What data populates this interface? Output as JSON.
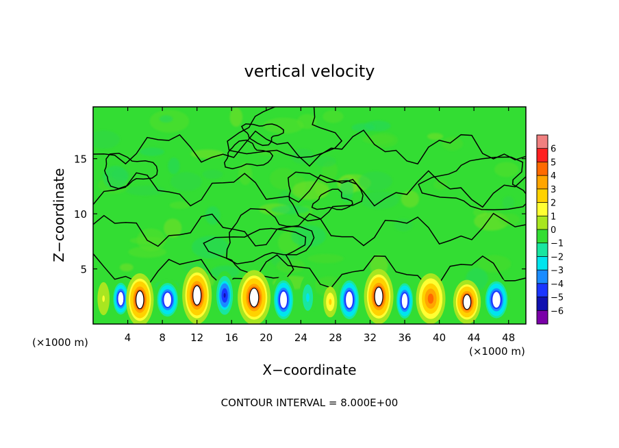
{
  "chart_data": {
    "type": "heatmap",
    "title": "vertical velocity",
    "xlabel": "X−coordinate",
    "ylabel": "Z−coordinate",
    "x_unit_label": "(×1000 m)",
    "y_unit_label": "(×1000 m)",
    "xlim": [
      0,
      50
    ],
    "ylim": [
      0,
      19.7
    ],
    "x_ticks": [
      4,
      8,
      12,
      16,
      20,
      24,
      28,
      32,
      36,
      40,
      44,
      48
    ],
    "y_ticks": [
      5,
      10,
      15
    ],
    "footer": "CONTOUR INTERVAL = 8.000E+00",
    "colorbar": {
      "levels": [
        "6",
        "5",
        "4",
        "3",
        "2",
        "1",
        "0",
        "−1",
        "−2",
        "−3",
        "−4",
        "−5",
        "−6"
      ],
      "colors": [
        "#f08080",
        "#ff2020",
        "#ff6a00",
        "#ffa500",
        "#ffd200",
        "#ffff33",
        "#a8e620",
        "#33dd33",
        "#19e6a0",
        "#00e5ee",
        "#1a8cff",
        "#1a35ff",
        "#1010b0",
        "#7a00a8"
      ]
    },
    "background_value": 0,
    "cells": [
      {
        "x": 1.2,
        "z": 2.3,
        "rx": 0.7,
        "rz": 1.5,
        "w": 1.2
      },
      {
        "x": 3.2,
        "z": 2.3,
        "rx": 1.1,
        "rz": 1.8,
        "w": -6.5
      },
      {
        "x": 5.4,
        "z": 2.2,
        "rx": 1.6,
        "rz": 2.4,
        "w": 6.5
      },
      {
        "x": 8.6,
        "z": 2.2,
        "rx": 1.5,
        "rz": 1.9,
        "w": -6.5
      },
      {
        "x": 12.0,
        "z": 2.6,
        "rx": 1.7,
        "rz": 2.6,
        "w": 6.5
      },
      {
        "x": 15.2,
        "z": 2.6,
        "rx": 1.2,
        "rz": 2.2,
        "w": -5.5
      },
      {
        "x": 18.6,
        "z": 2.4,
        "rx": 1.9,
        "rz": 2.5,
        "w": 6.5
      },
      {
        "x": 22.0,
        "z": 2.2,
        "rx": 1.4,
        "rz": 2.2,
        "w": -6.5
      },
      {
        "x": 24.8,
        "z": 2.4,
        "rx": 1.0,
        "rz": 2.0,
        "w": -2.5
      },
      {
        "x": 27.4,
        "z": 2.0,
        "rx": 0.8,
        "rz": 1.4,
        "w": 2.5
      },
      {
        "x": 29.6,
        "z": 2.2,
        "rx": 1.4,
        "rz": 2.2,
        "w": -6.5
      },
      {
        "x": 33.0,
        "z": 2.5,
        "rx": 1.7,
        "rz": 2.5,
        "w": 6.5
      },
      {
        "x": 36.0,
        "z": 2.1,
        "rx": 1.2,
        "rz": 2.0,
        "w": -6.5
      },
      {
        "x": 39.0,
        "z": 2.3,
        "rx": 1.7,
        "rz": 2.3,
        "w": 5.0
      },
      {
        "x": 43.2,
        "z": 2.0,
        "rx": 1.6,
        "rz": 2.0,
        "w": 6.5
      },
      {
        "x": 46.6,
        "z": 2.2,
        "rx": 1.6,
        "rz": 2.1,
        "w": -6.5
      }
    ]
  }
}
